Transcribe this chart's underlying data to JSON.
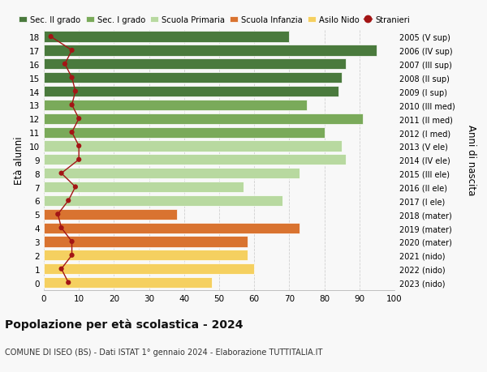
{
  "ages": [
    18,
    17,
    16,
    15,
    14,
    13,
    12,
    11,
    10,
    9,
    8,
    7,
    6,
    5,
    4,
    3,
    2,
    1,
    0
  ],
  "right_labels": [
    "2005 (V sup)",
    "2006 (IV sup)",
    "2007 (III sup)",
    "2008 (II sup)",
    "2009 (I sup)",
    "2010 (III med)",
    "2011 (II med)",
    "2012 (I med)",
    "2013 (V ele)",
    "2014 (IV ele)",
    "2015 (III ele)",
    "2016 (II ele)",
    "2017 (I ele)",
    "2018 (mater)",
    "2019 (mater)",
    "2020 (mater)",
    "2021 (nido)",
    "2022 (nido)",
    "2023 (nido)"
  ],
  "bar_values": [
    70,
    95,
    86,
    85,
    84,
    75,
    91,
    80,
    85,
    86,
    73,
    57,
    68,
    38,
    73,
    58,
    58,
    60,
    48
  ],
  "stranieri_values": [
    2,
    8,
    6,
    8,
    9,
    8,
    10,
    8,
    10,
    10,
    5,
    9,
    7,
    4,
    5,
    8,
    8,
    5,
    7
  ],
  "bar_colors": [
    "#4a7a3d",
    "#4a7a3d",
    "#4a7a3d",
    "#4a7a3d",
    "#4a7a3d",
    "#7aaa5a",
    "#7aaa5a",
    "#7aaa5a",
    "#b8d9a0",
    "#b8d9a0",
    "#b8d9a0",
    "#b8d9a0",
    "#b8d9a0",
    "#d97330",
    "#d97330",
    "#d97330",
    "#f5d060",
    "#f5d060",
    "#f5d060"
  ],
  "legend_labels": [
    "Sec. II grado",
    "Sec. I grado",
    "Scuola Primaria",
    "Scuola Infanzia",
    "Asilo Nido",
    "Stranieri"
  ],
  "legend_colors": [
    "#4a7a3d",
    "#7aaa5a",
    "#b8d9a0",
    "#d97330",
    "#f5d060",
    "#a31515"
  ],
  "title": "Popolazione per età scolastica - 2024",
  "subtitle": "COMUNE DI ISEO (BS) - Dati ISTAT 1° gennaio 2024 - Elaborazione TUTTITALIA.IT",
  "ylabel": "Età alunni",
  "ylabel2": "Anni di nascita",
  "xlabel_vals": [
    0,
    10,
    20,
    30,
    40,
    50,
    60,
    70,
    80,
    90,
    100
  ],
  "xlim": [
    0,
    100
  ],
  "background_color": "#f8f8f8",
  "stranieri_color": "#a31515",
  "grid_color": "#d0d0d0"
}
